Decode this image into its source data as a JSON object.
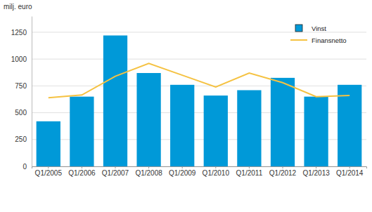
{
  "chart_data": {
    "type": "bar",
    "title": "milj. euro",
    "categories": [
      "Q1/2005",
      "Q1/2006",
      "Q1/2007",
      "Q1/2008",
      "Q1/2009",
      "Q1/2010",
      "Q1/2011",
      "Q1/2012",
      "Q1/2013",
      "Q1/2014"
    ],
    "series": [
      {
        "name": "Vinst",
        "type": "bar",
        "color": "#0099d8",
        "values": [
          420,
          650,
          1220,
          870,
          760,
          660,
          710,
          825,
          650,
          760
        ]
      },
      {
        "name": "Finansnetto",
        "type": "line",
        "color": "#f5c242",
        "values": [
          640,
          665,
          840,
          960,
          850,
          740,
          870,
          780,
          650,
          660
        ]
      }
    ],
    "ylim": [
      0,
      1400
    ],
    "yticks": [
      0,
      250,
      500,
      750,
      1000,
      1250
    ],
    "grid": true,
    "legend": "upper right"
  }
}
